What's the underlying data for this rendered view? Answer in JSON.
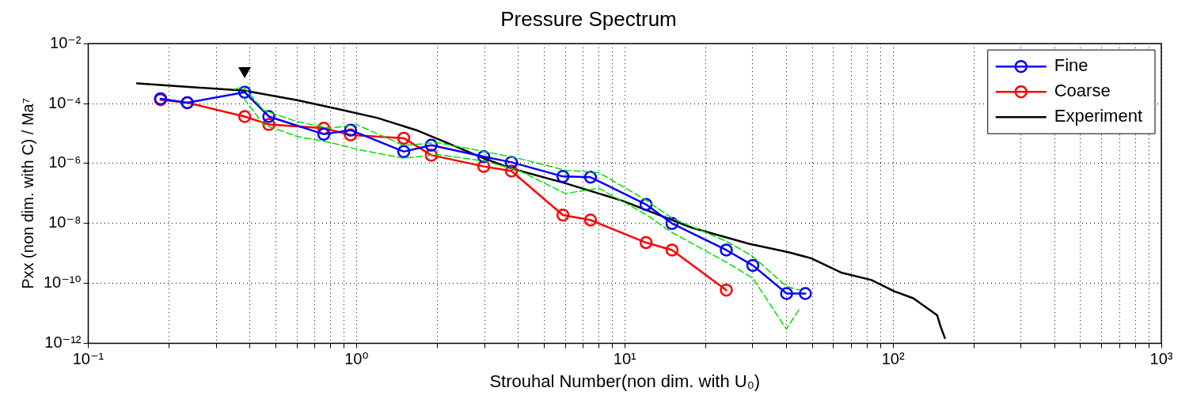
{
  "chart_data": {
    "type": "line",
    "title": "Pressure Spectrum",
    "xlabel": "Strouhal Number(non dim. with U₀)",
    "ylabel": "Pxx (non dim. with C) / Ma⁷",
    "log": "xy",
    "grid": true,
    "legend": "top right",
    "xlim": [
      0.1,
      1000
    ],
    "ylim": [
      1e-12,
      0.01
    ],
    "xticks": [
      {
        "value": 0.1,
        "label": "10⁻¹"
      },
      {
        "value": 0.2,
        "label": null
      },
      {
        "value": 0.3,
        "label": null
      },
      {
        "value": 0.4,
        "label": null
      },
      {
        "value": 0.5,
        "label": null
      },
      {
        "value": 0.6,
        "label": null
      },
      {
        "value": 0.7,
        "label": null
      },
      {
        "value": 0.8,
        "label": null
      },
      {
        "value": 0.9,
        "label": null
      },
      {
        "value": 1,
        "label": "10⁰"
      },
      {
        "value": 2,
        "label": null
      },
      {
        "value": 3,
        "label": null
      },
      {
        "value": 4,
        "label": null
      },
      {
        "value": 5,
        "label": null
      },
      {
        "value": 6,
        "label": null
      },
      {
        "value": 7,
        "label": null
      },
      {
        "value": 8,
        "label": null
      },
      {
        "value": 9,
        "label": null
      },
      {
        "value": 10,
        "label": "10¹"
      },
      {
        "value": 20,
        "label": null
      },
      {
        "value": 30,
        "label": null
      },
      {
        "value": 40,
        "label": null
      },
      {
        "value": 50,
        "label": null
      },
      {
        "value": 60,
        "label": null
      },
      {
        "value": 70,
        "label": null
      },
      {
        "value": 80,
        "label": null
      },
      {
        "value": 90,
        "label": null
      },
      {
        "value": 100,
        "label": "10²"
      },
      {
        "value": 200,
        "label": null
      },
      {
        "value": 300,
        "label": null
      },
      {
        "value": 400,
        "label": null
      },
      {
        "value": 500,
        "label": null
      },
      {
        "value": 600,
        "label": null
      },
      {
        "value": 700,
        "label": null
      },
      {
        "value": 800,
        "label": null
      },
      {
        "value": 900,
        "label": null
      },
      {
        "value": 1000,
        "label": "10³"
      }
    ],
    "yticks": [
      {
        "value": 1e-12,
        "label": "10⁻¹²"
      },
      {
        "value": 1e-10,
        "label": "10⁻¹⁰"
      },
      {
        "value": 1e-08,
        "label": "10⁻⁸"
      },
      {
        "value": 1e-06,
        "label": "10⁻⁶"
      },
      {
        "value": 0.0001,
        "label": "10⁻⁴"
      },
      {
        "value": 0.01,
        "label": "10⁻²"
      }
    ],
    "series": [
      {
        "color": "#00e000",
        "line_style": "dashed",
        "marker": "none",
        "x": [
          0.35,
          0.38,
          0.45,
          0.6,
          0.8,
          1.0,
          1.5,
          2,
          3,
          4,
          6,
          8,
          12,
          15,
          24,
          30,
          40,
          45
        ],
        "values": [
          0.0003,
          0.00035,
          6e-05,
          2.5e-05,
          1.5e-05,
          2e-05,
          4e-06,
          5e-06,
          2.5e-06,
          1.5e-06,
          6e-07,
          5e-07,
          6e-08,
          1.5e-08,
          2.5e-09,
          8e-10,
          8e-11,
          6e-11
        ]
      },
      {
        "color": "#00e000",
        "line_style": "dashed",
        "marker": "none",
        "x": [
          0.38,
          0.45,
          0.6,
          0.8,
          1.0,
          1.5,
          2,
          3,
          4,
          6,
          8,
          12,
          15,
          24,
          30,
          40,
          45
        ],
        "values": [
          0.00015,
          2e-05,
          8e-06,
          5e-06,
          3e-06,
          1.5e-06,
          2e-06,
          1.2e-06,
          6e-07,
          1e-07,
          1.5e-07,
          2e-08,
          5e-09,
          5e-10,
          1.5e-10,
          3e-12,
          1.5e-11
        ]
      },
      {
        "name": "Fine",
        "color": "#0000ff",
        "marker": "circle",
        "line_style": "solid",
        "x": [
          0.186,
          0.234,
          0.383,
          0.471,
          0.755,
          0.95,
          1.5,
          1.9,
          2.98,
          3.78,
          5.88,
          7.45,
          12,
          15,
          23.9,
          30,
          40.1,
          47.1
        ],
        "values": [
          0.000145,
          0.000107,
          0.00024,
          3.7e-05,
          9.5e-06,
          1.3e-05,
          2.5e-06,
          4.1e-06,
          1.7e-06,
          1.1e-06,
          3.7e-07,
          3.5e-07,
          4.3e-08,
          1e-08,
          1.3e-09,
          4e-10,
          4.6e-11,
          4.6e-11
        ]
      },
      {
        "name": "Coarse",
        "color": "#ff0000",
        "marker": "circle",
        "line_style": "solid",
        "x": [
          0.186,
          0.234,
          0.383,
          0.471,
          0.755,
          0.95,
          1.5,
          1.9,
          2.98,
          3.78,
          5.88,
          7.45,
          12,
          15,
          23.9
        ],
        "values": [
          0.000135,
          0.000107,
          3.7e-05,
          2e-05,
          1.5e-05,
          9e-06,
          7e-06,
          1.9e-06,
          8e-07,
          5.6e-07,
          1.9e-08,
          1.3e-08,
          2.3e-09,
          1.3e-09,
          6e-11
        ]
      },
      {
        "name": "Experiment",
        "color": "#000000",
        "marker": "none",
        "line_style": "solid",
        "x": [
          0.152,
          0.383,
          0.6,
          0.86,
          1.2,
          1.67,
          2.25,
          2.98,
          3.78,
          6.0,
          9.8,
          17.8,
          29,
          40.8,
          49.5,
          64,
          83,
          101,
          119,
          146,
          150,
          156
        ],
        "values": [
          0.00047,
          0.00027,
          0.00013,
          6.5e-05,
          3.3e-05,
          1.3e-05,
          4.3e-06,
          1.5e-06,
          6.8e-07,
          2.2e-07,
          5.7e-08,
          7.2e-09,
          2.1e-09,
          1.1e-09,
          6.9e-10,
          2.3e-10,
          1.3e-10,
          5.5e-11,
          3.2e-11,
          8.7e-12,
          3.9e-12,
          1.5e-12
        ]
      }
    ]
  }
}
